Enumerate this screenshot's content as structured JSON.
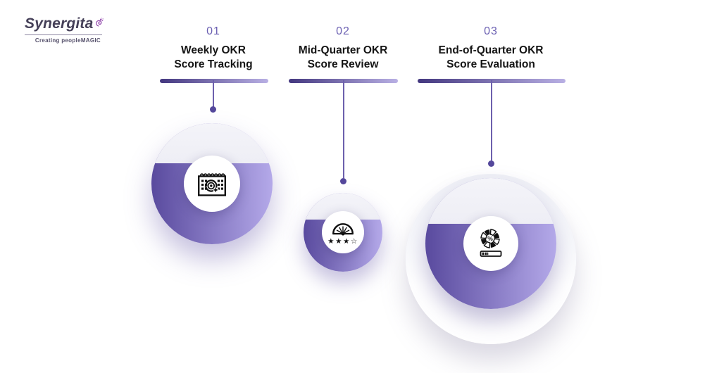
{
  "brand": {
    "name": "Synergita",
    "tagline": "Creating peopleMAGIC",
    "logo_icon": "swirl-splash-icon"
  },
  "colors": {
    "accent_dark": "#43377f",
    "accent_light": "#b9b0e4",
    "donut_left": "#594a9e",
    "donut_right": "#b4a9e9",
    "number_purple": "#6b60b2",
    "title_text": "#151515",
    "connector": "#6d60ad",
    "dot": "#54479b",
    "brand_purple": "#8d3fa8",
    "brand_text": "#454058",
    "icon_black": "#111111"
  },
  "stages": [
    {
      "number": "01",
      "title_line1": "Weekly OKR",
      "title_line2": "Score Tracking",
      "icon": "calendar-target-icon",
      "fill_percent": 67
    },
    {
      "number": "02",
      "title_line1": "Mid-Quarter OKR",
      "title_line2": "Score Review",
      "icon": "gauge-rating-icon",
      "stars": "★★★☆",
      "fill_percent": 66
    },
    {
      "number": "03",
      "title_line1": "End-of-Quarter OKR",
      "title_line2": "Score Evaluation",
      "icon": "pie-percent-progress-icon",
      "percent_label": "%",
      "fill_percent": 65
    }
  ]
}
